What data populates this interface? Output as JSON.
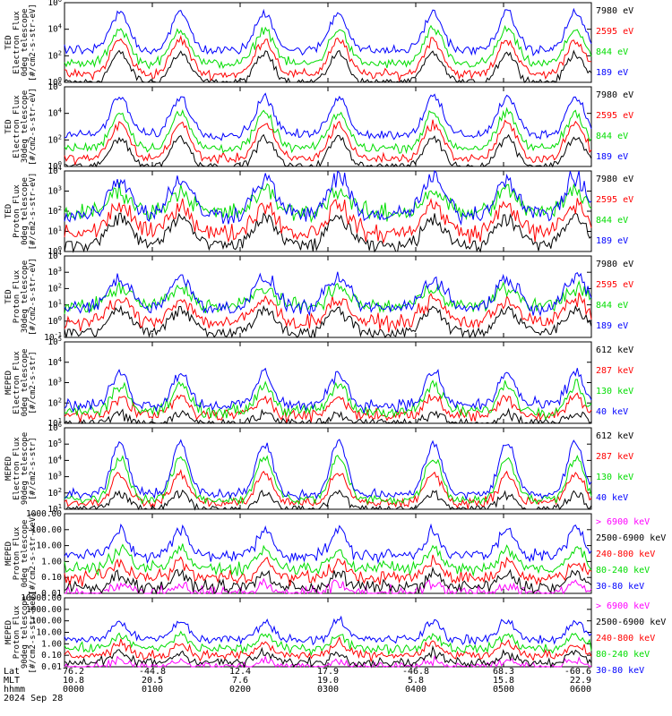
{
  "chart_data": [
    {
      "type": "line",
      "title": "",
      "ylabel": [
        "TED",
        "Electron Flux",
        "0deg telescope",
        "[#/cm2-s-str-eV]"
      ],
      "yscale": "log",
      "ylim_exp": [
        0,
        6
      ],
      "yticks": [
        "10^0",
        "10^2",
        "10^4",
        "10^6"
      ],
      "series": [
        {
          "name": "7980 eV",
          "color": "#000000",
          "values": []
        },
        {
          "name": "2595 eV",
          "color": "#ff0000",
          "values": []
        },
        {
          "name": "844 eV",
          "color": "#00dd00",
          "values": []
        },
        {
          "name": "189 eV",
          "color": "#0000ff",
          "values": []
        }
      ]
    },
    {
      "type": "line",
      "title": "",
      "ylabel": [
        "TED",
        "Electron Flux",
        "30deg telescope",
        "[#/cm2-s-str-eV]"
      ],
      "yscale": "log",
      "ylim_exp": [
        0,
        6
      ],
      "yticks": [
        "10^0",
        "10^2",
        "10^4",
        "10^6"
      ],
      "series": [
        {
          "name": "7980 eV",
          "color": "#000000",
          "values": []
        },
        {
          "name": "2595 eV",
          "color": "#ff0000",
          "values": []
        },
        {
          "name": "844 eV",
          "color": "#00dd00",
          "values": []
        },
        {
          "name": "189 eV",
          "color": "#0000ff",
          "values": []
        }
      ]
    },
    {
      "type": "line",
      "title": "",
      "ylabel": [
        "TED",
        "Proton Flux",
        "0deg telescope",
        "[#/cm2-s-str-eV]"
      ],
      "yscale": "log",
      "ylim_exp": [
        0,
        4
      ],
      "yticks": [
        "10^0",
        "10^1",
        "10^2",
        "10^3",
        "10^4"
      ],
      "series": [
        {
          "name": "7980 eV",
          "color": "#000000",
          "values": []
        },
        {
          "name": "2595 eV",
          "color": "#ff0000",
          "values": []
        },
        {
          "name": "844 eV",
          "color": "#00dd00",
          "values": []
        },
        {
          "name": "189 eV",
          "color": "#0000ff",
          "values": []
        }
      ]
    },
    {
      "type": "line",
      "title": "",
      "ylabel": [
        "TED",
        "Proton Flux",
        "30deg telescope",
        "[#/cm2-s-str-eV]"
      ],
      "yscale": "log",
      "ylim_exp": [
        -1,
        4
      ],
      "yticks": [
        "10^-1",
        "10^0",
        "10^1",
        "10^2",
        "10^3",
        "10^4"
      ],
      "series": [
        {
          "name": "7980 eV",
          "color": "#000000",
          "values": []
        },
        {
          "name": "2595 eV",
          "color": "#ff0000",
          "values": []
        },
        {
          "name": "844 eV",
          "color": "#00dd00",
          "values": []
        },
        {
          "name": "189 eV",
          "color": "#0000ff",
          "values": []
        }
      ]
    },
    {
      "type": "line",
      "title": "",
      "ylabel": [
        "MEPED",
        "Electron Flux",
        "0deg telescope",
        "[#/cm2-s-str]"
      ],
      "yscale": "log",
      "ylim_exp": [
        1,
        5
      ],
      "yticks": [
        "10^1",
        "10^2",
        "10^3",
        "10^4",
        "10^5"
      ],
      "series": [
        {
          "name": "612 keV",
          "color": "#000000",
          "values": []
        },
        {
          "name": "287 keV",
          "color": "#ff0000",
          "values": []
        },
        {
          "name": "130 keV",
          "color": "#00dd00",
          "values": []
        },
        {
          "name": "40 keV",
          "color": "#0000ff",
          "values": []
        }
      ]
    },
    {
      "type": "line",
      "title": "",
      "ylabel": [
        "MEPED",
        "Electron Flux",
        "90deg telescope",
        "[#/cm2-s-str]"
      ],
      "yscale": "log",
      "ylim_exp": [
        1,
        6
      ],
      "yticks": [
        "10^1",
        "10^2",
        "10^3",
        "10^4",
        "10^5",
        "10^6"
      ],
      "series": [
        {
          "name": "612 keV",
          "color": "#000000",
          "values": []
        },
        {
          "name": "287 keV",
          "color": "#ff0000",
          "values": []
        },
        {
          "name": "130 keV",
          "color": "#00dd00",
          "values": []
        },
        {
          "name": "40 keV",
          "color": "#0000ff",
          "values": []
        }
      ]
    },
    {
      "type": "line",
      "title": "",
      "ylabel": [
        "MEPED",
        "Proton Flux",
        "0deg telescope",
        "[#/cm2-s-str-keV]"
      ],
      "yscale": "log",
      "ylim_exp": [
        -2,
        3
      ],
      "yticks": [
        "0.01",
        "0.10",
        "1.00",
        "10.00",
        "100.00",
        "1000.00"
      ],
      "series": [
        {
          "name": "> 6900 keV",
          "color": "#ff00ff",
          "values": []
        },
        {
          "name": "2500-6900 keV",
          "color": "#000000",
          "values": []
        },
        {
          "name": "240-800 keV",
          "color": "#ff0000",
          "values": []
        },
        {
          "name": "80-240 keV",
          "color": "#00dd00",
          "values": []
        },
        {
          "name": "30-80 keV",
          "color": "#0000ff",
          "values": []
        }
      ]
    },
    {
      "type": "line",
      "title": "",
      "ylabel": [
        "MEPED",
        "Proton Flux",
        "90deg telescope",
        "[#/cm2-s-str-keV]"
      ],
      "yscale": "log",
      "ylim_exp": [
        -2,
        4
      ],
      "yticks": [
        "0.01",
        "0.10",
        "1.00",
        "10.00",
        "100.00",
        "1000.00",
        "10000.00"
      ],
      "series": [
        {
          "name": "> 6900 keV",
          "color": "#ff00ff",
          "values": []
        },
        {
          "name": "2500-6900 keV",
          "color": "#000000",
          "values": []
        },
        {
          "name": "240-800 keV",
          "color": "#ff0000",
          "values": []
        },
        {
          "name": "80-240 keV",
          "color": "#00dd00",
          "values": []
        },
        {
          "name": "30-80 keV",
          "color": "#0000ff",
          "values": []
        }
      ]
    }
  ],
  "footer": {
    "row_labels": [
      "Lat",
      "MLT",
      "hhmm"
    ],
    "columns": [
      {
        "lat": "76.2",
        "mlt": "10.8",
        "hhmm": "0000"
      },
      {
        "lat": "-44.8",
        "mlt": "20.5",
        "hhmm": "0100"
      },
      {
        "lat": "12.4",
        "mlt": "7.6",
        "hhmm": "0200"
      },
      {
        "lat": "17.9",
        "mlt": "19.0",
        "hhmm": "0300"
      },
      {
        "lat": "-46.8",
        "mlt": "5.8",
        "hhmm": "0400"
      },
      {
        "lat": "68.3",
        "mlt": "15.8",
        "hhmm": "0500"
      },
      {
        "lat": "-60.6",
        "mlt": "22.9",
        "hhmm": "0600"
      }
    ],
    "date": "2024 Sep 28"
  }
}
